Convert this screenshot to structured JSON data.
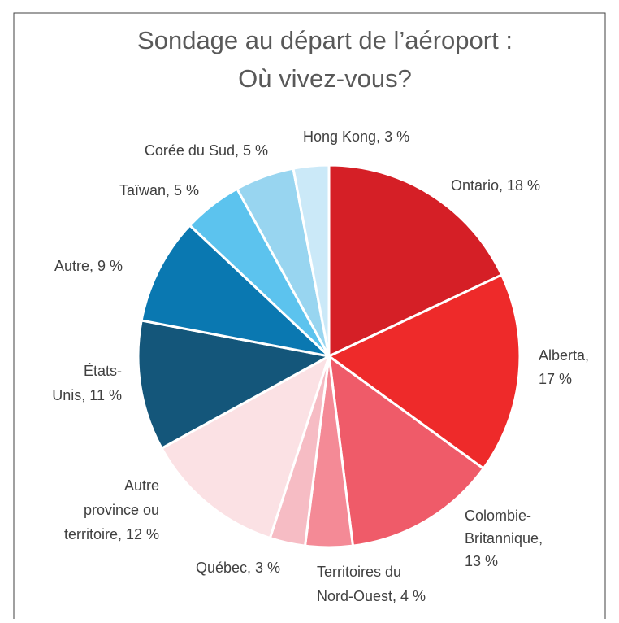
{
  "chart_data": {
    "type": "pie",
    "title": [
      "Sondage au départ de l’aéroport :",
      "Où vivez-vous?"
    ],
    "labels": [
      [
        "Ontario, 18 %"
      ],
      [
        "Alberta,",
        "17 %"
      ],
      [
        "Colombie-",
        "Britannique,",
        "13 %"
      ],
      [
        "Territoires du",
        "Nord-Ouest, 4 %"
      ],
      [
        "Québec, 3 %"
      ],
      [
        "Autre",
        "province ou",
        "territoire, 12 %"
      ],
      [
        "États-",
        "Unis, 11 %"
      ],
      [
        "Autre, 9 %"
      ],
      [
        "Taïwan, 5 %"
      ],
      [
        "Corée du Sud, 5 %"
      ],
      [
        "Hong Kong, 3 %"
      ]
    ],
    "values": [
      18,
      17,
      13,
      4,
      3,
      12,
      11,
      9,
      5,
      5,
      3
    ],
    "colors": [
      "#d51f26",
      "#ee2a2a",
      "#ef5b69",
      "#f48a96",
      "#f6bcc4",
      "#fbe1e4",
      "#14567a",
      "#0a78b1",
      "#5cc3ee",
      "#98d5f0",
      "#cbe9f8"
    ]
  }
}
